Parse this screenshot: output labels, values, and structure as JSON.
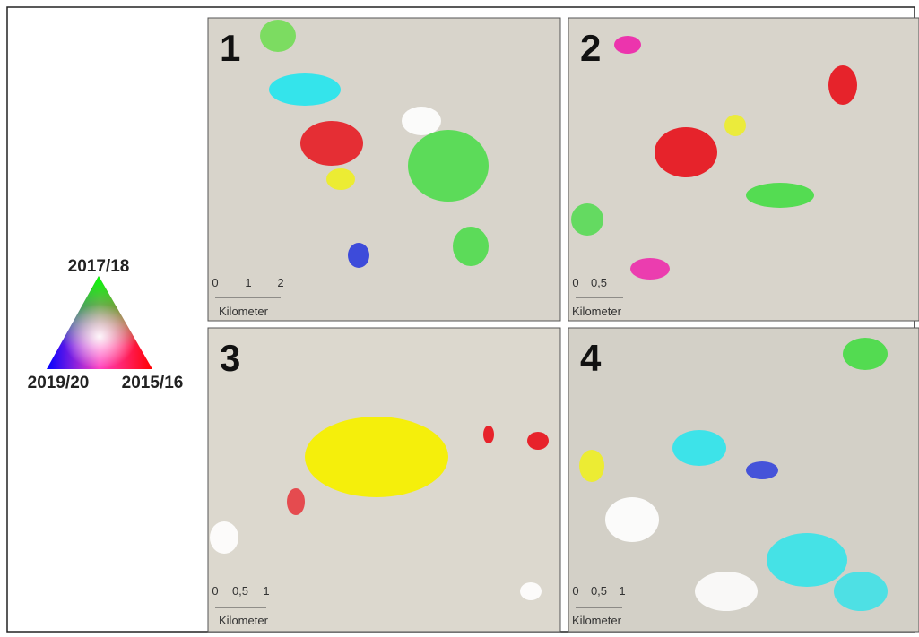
{
  "legend": {
    "top": "2017/18",
    "left": "2019/20",
    "right": "2015/16"
  },
  "panels": [
    {
      "label": "1",
      "scale": {
        "ticks": [
          "0",
          "1",
          "2"
        ],
        "unit": "Kilometer"
      }
    },
    {
      "label": "2",
      "scale": {
        "ticks": [
          "0",
          "0,5"
        ],
        "unit": "Kilometer"
      }
    },
    {
      "label": "3",
      "scale": {
        "ticks": [
          "0",
          "0,5",
          "1"
        ],
        "unit": "Kilometer"
      }
    },
    {
      "label": "4",
      "scale": {
        "ticks": [
          "0",
          "0,5",
          "1"
        ],
        "unit": "Kilometer"
      }
    }
  ]
}
